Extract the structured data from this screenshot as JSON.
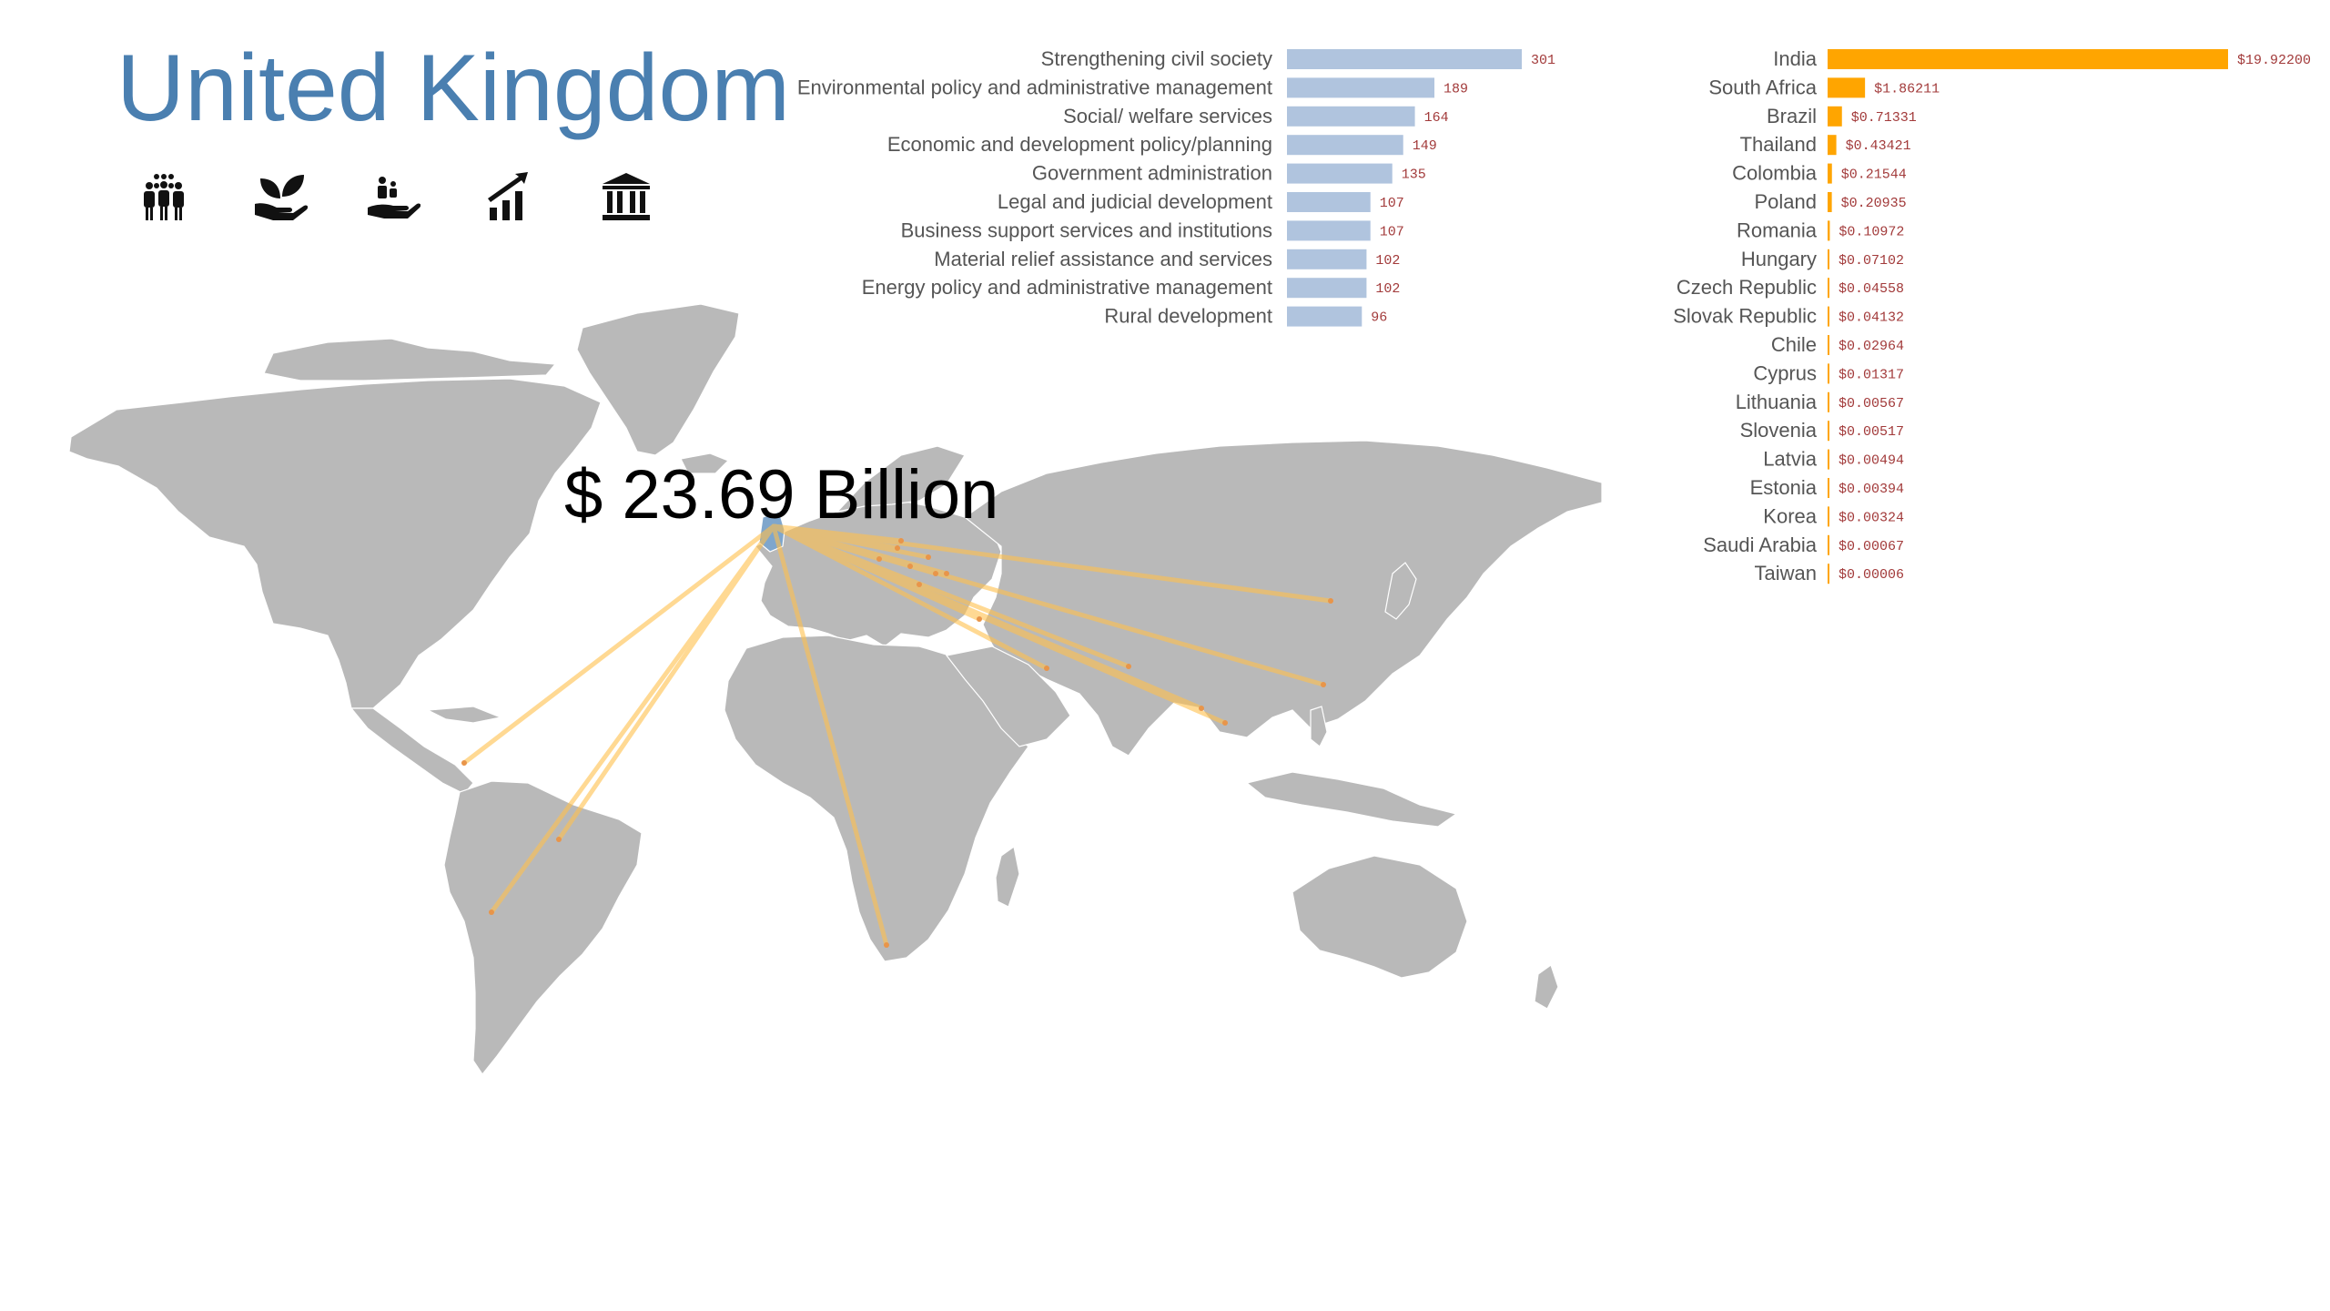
{
  "header": {
    "country": "United Kingdom",
    "total": "$ 23.69 Billion"
  },
  "icons": [
    "people-group-icon",
    "seedling-hand-icon",
    "family-hand-icon",
    "growth-chart-icon",
    "government-building-icon"
  ],
  "colors": {
    "title": "#4a7fb0",
    "sector_bar": "#b0c4de",
    "country_bar": "#ffa500",
    "value_label": "#a23a3a",
    "category_label": "#555555",
    "land": "#b9b9b9",
    "flow_line": "#ffc04d",
    "origin": "#7fa6cc"
  },
  "chart_data": [
    {
      "type": "bar",
      "orientation": "horizontal",
      "categories": [
        "Strengthening civil society",
        "Environmental policy and administrative management",
        "Social/ welfare services",
        "Economic and development policy/planning",
        "Government administration",
        "Legal and judicial development",
        "Business support services and institutions",
        "Material relief assistance and services",
        "Energy policy and administrative management",
        "Rural development"
      ],
      "values": [
        301,
        189,
        164,
        149,
        135,
        107,
        107,
        102,
        102,
        96
      ],
      "value_labels": [
        "301",
        "189",
        "164",
        "149",
        "135",
        "107",
        "107",
        "102",
        "102",
        "96"
      ],
      "xlim": [
        0,
        301
      ]
    },
    {
      "type": "bar",
      "orientation": "horizontal",
      "categories": [
        "India",
        "South Africa",
        "Brazil",
        "Thailand",
        "Colombia",
        "Poland",
        "Romania",
        "Hungary",
        "Czech Republic",
        "Slovak Republic",
        "Chile",
        "Cyprus",
        "Lithuania",
        "Slovenia",
        "Latvia",
        "Estonia",
        "Korea",
        "Saudi Arabia",
        "Taiwan"
      ],
      "values": [
        19.922,
        1.86211,
        0.71331,
        0.43421,
        0.21544,
        0.20935,
        0.10972,
        0.07102,
        0.04558,
        0.04132,
        0.02964,
        0.01317,
        0.00567,
        0.00517,
        0.00494,
        0.00394,
        0.00324,
        0.00067,
        6e-05
      ],
      "value_labels": [
        "$19.92200",
        "$1.86211",
        "$0.71331",
        "$0.43421",
        "$0.21544",
        "$0.20935",
        "$0.10972",
        "$0.07102",
        "$0.04558",
        "$0.04132",
        "$0.02964",
        "$0.01317",
        "$0.00567",
        "$0.00517",
        "$0.00494",
        "$0.00394",
        "$0.00324",
        "$0.00067",
        "$0.00006"
      ],
      "xlim": [
        0,
        19.922
      ]
    }
  ]
}
